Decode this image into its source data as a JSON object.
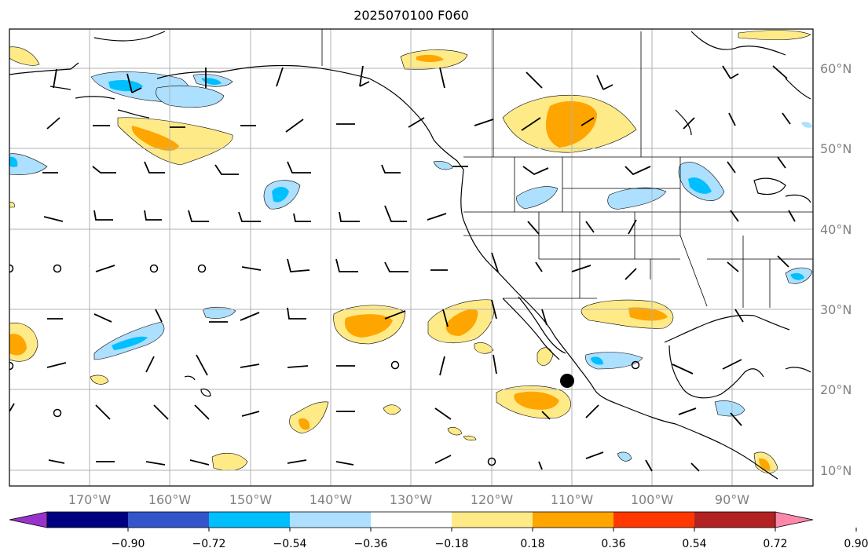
{
  "title": "2025070100 F060",
  "map": {
    "projection": "plate-carree",
    "lon_range": [
      -180,
      -80
    ],
    "lat_range": [
      8,
      65
    ],
    "lat_ticks": [
      "60°N",
      "50°N",
      "40°N",
      "30°N",
      "20°N",
      "10°N"
    ],
    "lon_ticks": [
      "170°W",
      "160°W",
      "150°W",
      "140°W",
      "130°W",
      "120°W",
      "110°W",
      "100°W",
      "90°W"
    ],
    "grid": true,
    "marker": {
      "lon": -110,
      "lat": 21
    }
  },
  "colorbar": {
    "colors": [
      "#9932CC",
      "#000080",
      "#3355CC",
      "#00BFFF",
      "#ADDFFF",
      "#FFFFFF",
      "#FFEA88",
      "#FFA500",
      "#FF3800",
      "#B22222",
      "#FF88AA"
    ],
    "tick_labels": [
      "−0.90",
      "−0.72",
      "−0.54",
      "−0.36",
      "−0.18",
      "0.18",
      "0.36",
      "0.54",
      "0.72",
      "0.90"
    ]
  }
}
